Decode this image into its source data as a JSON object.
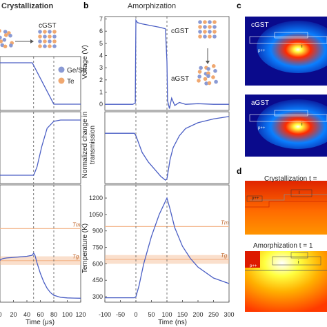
{
  "panels": {
    "a": {
      "title": "Crystallization",
      "state_start": "",
      "state_end": "cGST",
      "legend": [
        {
          "label": "Ge/Sb",
          "color": "#8a9ad4"
        },
        {
          "label": "Te",
          "color": "#f0a870"
        }
      ],
      "xlabel": "Time (μs)"
    },
    "b": {
      "letter": "b",
      "title": "Amorphization",
      "state_top": "cGST",
      "state_bottom": "aGST",
      "xlabel": "Time (ns)"
    },
    "c": {
      "letter": "c",
      "maps": [
        {
          "label": "cGST",
          "doping": "p++",
          "core": "i"
        },
        {
          "label": "aGST",
          "doping": "p++",
          "core": "i"
        }
      ]
    },
    "d": {
      "letter": "d",
      "maps": [
        {
          "label": "Crystallization t = ",
          "doping": "p++",
          "core": "i"
        },
        {
          "label": "Amorphization t = 1",
          "doping": "p++",
          "core": "i"
        }
      ]
    }
  },
  "colors": {
    "line": "#4a5ec4",
    "melt_band": "#f4b88e",
    "glass_band": "#f4b88e",
    "atom_gesb": "#8a9ad4",
    "atom_te": "#f0a870"
  },
  "chart_data": [
    {
      "panel": "a",
      "type": "line",
      "title": "Crystallization",
      "xlabel": "Time (μs)",
      "xlim": [
        0,
        120
      ],
      "xticks": [
        0,
        20,
        40,
        60,
        80,
        100,
        120
      ],
      "x_visible": [
        "0",
        "20",
        "40",
        "60",
        "80",
        "100",
        "120"
      ],
      "dashed_markers_x": [
        50,
        80
      ],
      "rows": [
        {
          "row": "voltage",
          "x": [
            0,
            48,
            80,
            120
          ],
          "y": [
            1,
            1,
            0,
            0
          ]
        },
        {
          "row": "transmission",
          "x": [
            0,
            50,
            55,
            62,
            70,
            80,
            90,
            120
          ],
          "y": [
            -1,
            -1,
            -0.8,
            -0.3,
            0.15,
            0.32,
            0.35,
            0.35
          ]
        },
        {
          "row": "temperature",
          "ylim": [
            250,
            1350
          ],
          "x": [
            0,
            1,
            5,
            10,
            20,
            30,
            40,
            48,
            50,
            52,
            55,
            60,
            65,
            70,
            75,
            80,
            90,
            100,
            110,
            120
          ],
          "y": [
            640,
            650,
            660,
            665,
            670,
            675,
            680,
            690,
            710,
            690,
            620,
            520,
            440,
            380,
            340,
            315,
            295,
            290,
            288,
            287
          ],
          "bands": [
            {
              "label": "Tm",
              "value": 940
            },
            {
              "label": "Tg",
              "value": 640,
              "range": [
                600,
                680
              ]
            }
          ]
        }
      ]
    },
    {
      "panel": "b",
      "type": "line",
      "title": "Amorphization",
      "xlabel": "Time (ns)",
      "xlim": [
        -100,
        300
      ],
      "xticks": [
        -100,
        -50,
        0,
        50,
        100,
        150,
        200,
        250,
        300
      ],
      "x_visible": [
        "-100",
        "-50",
        "0",
        "50",
        "100",
        "150",
        "200",
        "250",
        "300"
      ],
      "dashed_markers_x": [
        0,
        100
      ],
      "rows": [
        {
          "row": "voltage",
          "ylabel": "Voltage (V)",
          "ylim": [
            -0.5,
            7.2
          ],
          "yticks": [
            0,
            1,
            2,
            3,
            4,
            5,
            6,
            7
          ],
          "ytick_labels": [
            "0",
            "1",
            "2",
            "3",
            "4",
            "5",
            "6",
            "7"
          ],
          "x": [
            -100,
            -10,
            -2,
            0,
            5,
            20,
            40,
            60,
            80,
            95,
            100,
            102,
            108,
            115,
            125,
            140,
            160,
            200,
            250,
            300
          ],
          "y": [
            0,
            0,
            0.1,
            6.9,
            6.7,
            6.6,
            6.5,
            6.4,
            6.3,
            6.2,
            3.5,
            0.3,
            -0.35,
            0.5,
            -0.1,
            0.15,
            0,
            0.05,
            0,
            0
          ]
        },
        {
          "row": "transmission",
          "ylabel": "Normalized change in transmission",
          "ylim": [
            -1.05,
            0.45
          ],
          "x": [
            -100,
            -5,
            0,
            20,
            40,
            60,
            80,
            95,
            100,
            110,
            120,
            140,
            160,
            200,
            250,
            300
          ],
          "y": [
            0,
            0,
            -0.05,
            -0.4,
            -0.6,
            -0.75,
            -0.9,
            -0.98,
            -0.95,
            -0.55,
            -0.3,
            -0.05,
            0.1,
            0.22,
            0.3,
            0.35
          ]
        },
        {
          "row": "temperature",
          "ylabel": "Temperature (K)",
          "ylim": [
            250,
            1320
          ],
          "yticks": [
            300,
            450,
            600,
            750,
            900,
            1050,
            1200
          ],
          "ytick_labels": [
            "300",
            "450",
            "600",
            "750",
            "900",
            "1050",
            "1200"
          ],
          "x": [
            -100,
            -5,
            0,
            10,
            25,
            50,
            75,
            100,
            110,
            125,
            150,
            175,
            200,
            250,
            300
          ],
          "y": [
            290,
            290,
            300,
            400,
            600,
            850,
            1050,
            1200,
            1100,
            930,
            760,
            650,
            570,
            470,
            420
          ],
          "bands": [
            {
              "label": "Tm",
              "value": 940
            },
            {
              "label": "Tg",
              "value": 640,
              "range": [
                600,
                680
              ]
            }
          ]
        }
      ]
    }
  ]
}
